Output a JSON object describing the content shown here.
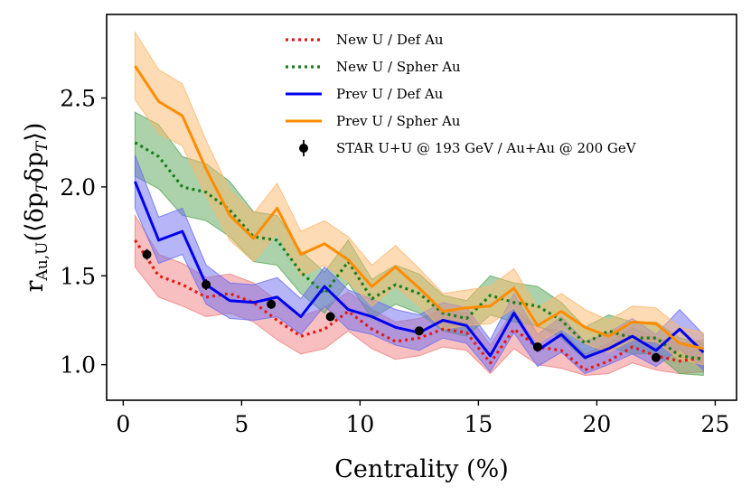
{
  "chart_data": {
    "type": "line",
    "xlabel": "Centrality (%)",
    "ylabel": "r_Au,U(⟨δp_T δp_T⟩)",
    "ylabel_parts": {
      "main": "r",
      "sub": "Au,U",
      "arg": "(⟨δp",
      "t1": "T",
      "mid": "δp",
      "t2": "T",
      "close": "⟩)"
    },
    "xlim": [
      -0.7,
      25.9
    ],
    "ylim": [
      0.8,
      2.97
    ],
    "xticks": [
      0,
      5,
      10,
      15,
      20,
      25
    ],
    "yticks": [
      1.0,
      1.5,
      2.0,
      2.5
    ],
    "xtick_labels": [
      "0",
      "5",
      "10",
      "15",
      "20",
      "25"
    ],
    "ytick_labels": [
      "1.0",
      "1.5",
      "2.0",
      "2.5"
    ],
    "legend_position": "top-center",
    "x": [
      0.5,
      1.5,
      2.5,
      3.5,
      4.5,
      5.5,
      6.5,
      7.5,
      8.5,
      9.5,
      10.5,
      11.5,
      12.5,
      13.5,
      14.5,
      15.5,
      16.5,
      17.5,
      18.5,
      19.5,
      20.5,
      21.5,
      22.5,
      23.5,
      24.5
    ],
    "series": [
      {
        "name": "New U / Def Au",
        "color": "#e31a1c",
        "style": "dotted",
        "values": [
          1.7,
          1.5,
          1.45,
          1.38,
          1.4,
          1.35,
          1.25,
          1.16,
          1.2,
          1.3,
          1.2,
          1.13,
          1.15,
          1.2,
          1.18,
          1.01,
          1.2,
          1.1,
          1.08,
          0.97,
          1.02,
          1.1,
          1.05,
          1.02,
          1.04
        ],
        "lower": [
          1.55,
          1.38,
          1.33,
          1.27,
          1.29,
          1.24,
          1.14,
          1.06,
          1.09,
          1.19,
          1.09,
          1.03,
          1.05,
          1.1,
          1.08,
          0.95,
          1.09,
          1.0,
          0.98,
          0.94,
          0.95,
          1.01,
          0.97,
          0.95,
          0.96
        ],
        "upper": [
          1.84,
          1.62,
          1.57,
          1.49,
          1.51,
          1.46,
          1.36,
          1.27,
          1.32,
          1.41,
          1.31,
          1.24,
          1.26,
          1.31,
          1.29,
          1.11,
          1.31,
          1.21,
          1.19,
          1.06,
          1.12,
          1.21,
          1.15,
          1.12,
          1.14
        ],
        "band_color": "#f08080"
      },
      {
        "name": "New U / Spher Au",
        "color": "#1a7f1a",
        "style": "dotted",
        "values": [
          2.25,
          2.17,
          2.0,
          1.97,
          1.87,
          1.72,
          1.7,
          1.52,
          1.4,
          1.58,
          1.37,
          1.45,
          1.4,
          1.29,
          1.26,
          1.39,
          1.35,
          1.33,
          1.25,
          1.12,
          1.19,
          1.15,
          1.15,
          1.05,
          1.03
        ],
        "lower": [
          2.06,
          1.99,
          1.84,
          1.81,
          1.72,
          1.58,
          1.56,
          1.4,
          1.29,
          1.46,
          1.26,
          1.34,
          1.29,
          1.19,
          1.16,
          1.28,
          1.24,
          1.22,
          1.15,
          1.03,
          1.1,
          1.06,
          1.06,
          0.95,
          0.94
        ],
        "upper": [
          2.42,
          2.35,
          2.17,
          2.13,
          2.03,
          1.86,
          1.84,
          1.64,
          1.52,
          1.7,
          1.48,
          1.56,
          1.51,
          1.39,
          1.36,
          1.5,
          1.46,
          1.44,
          1.35,
          1.21,
          1.28,
          1.24,
          1.24,
          1.15,
          1.12
        ],
        "band_color": "#5aa65a"
      },
      {
        "name": "Prev U / Def Au",
        "color": "#0000ee",
        "style": "solid",
        "values": [
          2.03,
          1.7,
          1.75,
          1.45,
          1.36,
          1.35,
          1.38,
          1.27,
          1.44,
          1.31,
          1.27,
          1.21,
          1.18,
          1.25,
          1.22,
          1.05,
          1.29,
          1.08,
          1.17,
          1.04,
          1.09,
          1.16,
          1.08,
          1.2,
          1.07
        ],
        "lower": [
          1.88,
          1.57,
          1.62,
          1.34,
          1.26,
          1.25,
          1.27,
          1.17,
          1.33,
          1.2,
          1.17,
          1.11,
          1.08,
          1.15,
          1.12,
          0.96,
          1.18,
          0.99,
          1.07,
          0.95,
          1.0,
          1.06,
          0.99,
          1.09,
          0.97
        ],
        "upper": [
          2.18,
          1.83,
          1.88,
          1.56,
          1.46,
          1.45,
          1.49,
          1.37,
          1.55,
          1.42,
          1.37,
          1.31,
          1.28,
          1.35,
          1.32,
          1.14,
          1.4,
          1.17,
          1.27,
          1.13,
          1.18,
          1.26,
          1.17,
          1.31,
          1.17
        ],
        "band_color": "#6b6bf2"
      },
      {
        "name": "Prev U / Spher Au",
        "color": "#ff8c00",
        "style": "solid",
        "values": [
          2.68,
          2.48,
          2.4,
          2.1,
          1.84,
          1.71,
          1.88,
          1.62,
          1.68,
          1.59,
          1.44,
          1.55,
          1.43,
          1.3,
          1.32,
          1.33,
          1.43,
          1.22,
          1.3,
          1.21,
          1.16,
          1.24,
          1.23,
          1.12,
          1.09
        ],
        "lower": [
          2.49,
          2.3,
          2.23,
          1.95,
          1.7,
          1.58,
          1.74,
          1.5,
          1.56,
          1.47,
          1.33,
          1.44,
          1.33,
          1.2,
          1.22,
          1.23,
          1.32,
          1.12,
          1.2,
          1.12,
          1.07,
          1.14,
          1.13,
          1.03,
          1.0
        ],
        "upper": [
          2.87,
          2.66,
          2.58,
          2.26,
          1.98,
          1.85,
          2.02,
          1.75,
          1.81,
          1.72,
          1.56,
          1.67,
          1.54,
          1.4,
          1.42,
          1.44,
          1.54,
          1.32,
          1.4,
          1.31,
          1.25,
          1.33,
          1.32,
          1.21,
          1.18
        ],
        "band_color": "#fbb76a"
      }
    ],
    "points": {
      "name": "STAR U+U @ 193 GeV / Au+Au @ 200 GeV",
      "color": "#000000",
      "x": [
        1.0,
        3.5,
        6.25,
        8.75,
        12.5,
        17.5,
        22.5
      ],
      "y": [
        1.62,
        1.45,
        1.34,
        1.27,
        1.19,
        1.1,
        1.04
      ],
      "err": [
        0.03,
        0.03,
        0.025,
        0.025,
        0.02,
        0.02,
        0.02
      ]
    }
  }
}
